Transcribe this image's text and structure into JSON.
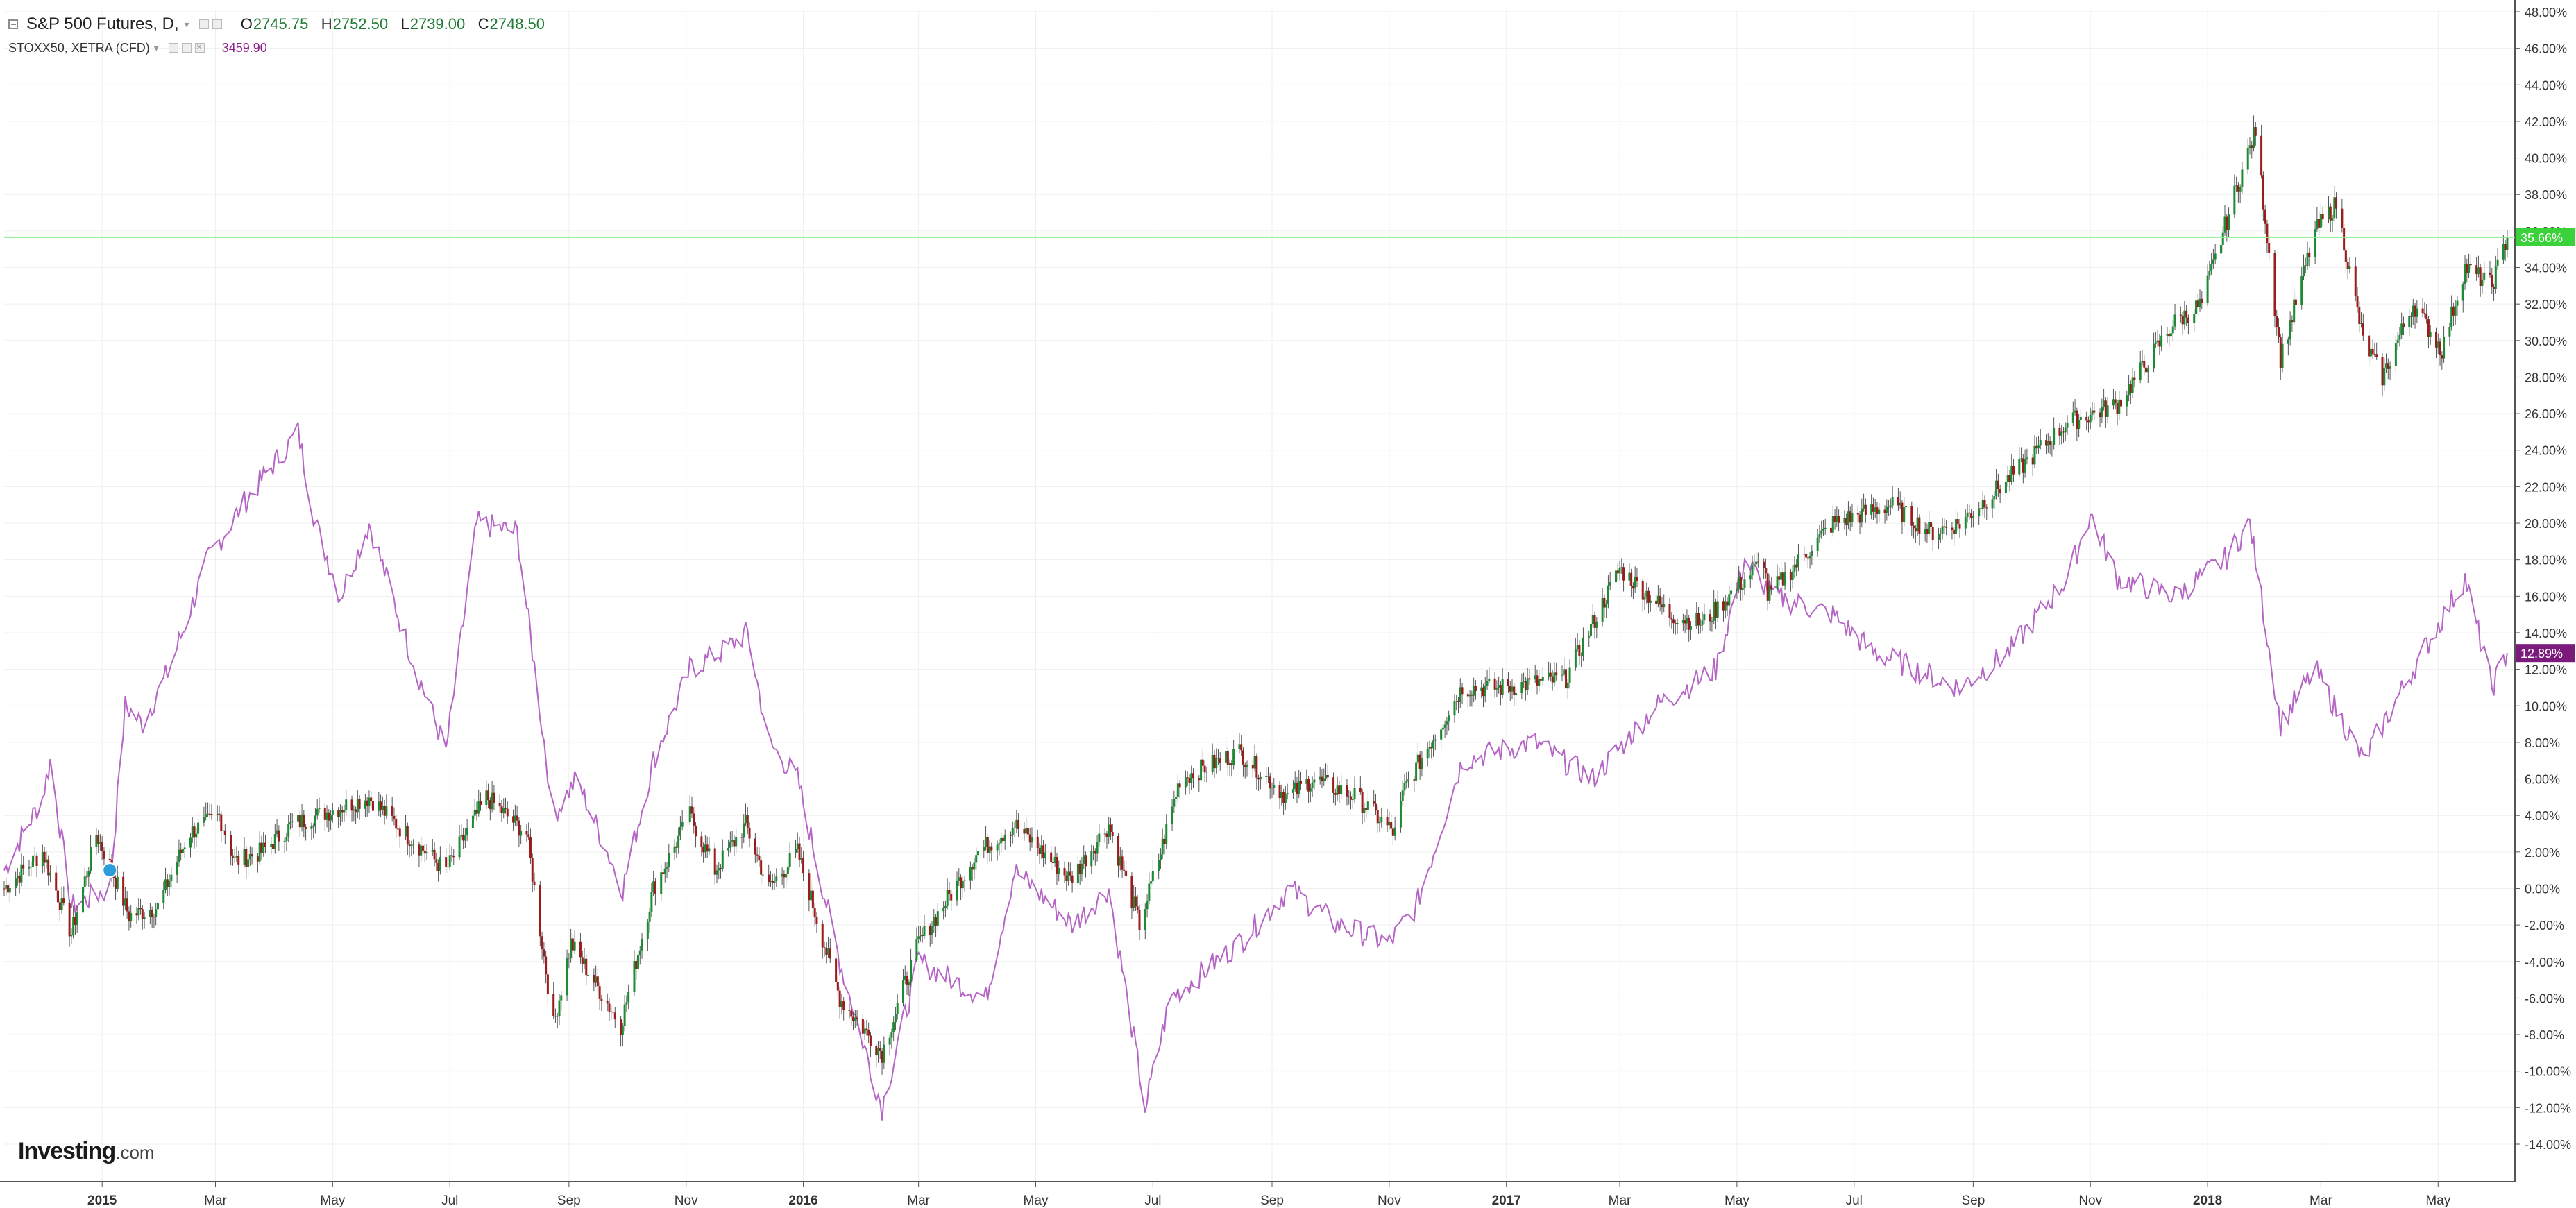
{
  "header": {
    "main_title": "S&P 500 Futures, D,",
    "ohlc": [
      {
        "key": "O",
        "value": "2745.75"
      },
      {
        "key": "H",
        "value": "2752.50"
      },
      {
        "key": "L",
        "value": "2739.00"
      },
      {
        "key": "C",
        "value": "2748.50"
      }
    ],
    "compare_title": "STOXX50, XETRA (CFD)",
    "compare_value": "3459.90"
  },
  "watermark": {
    "brand": "Investing",
    "suffix": ".com"
  },
  "colors": {
    "up": "#1f8a34",
    "down": "#9b1c1c",
    "wick": "#555555",
    "compare_line": "#b565c5",
    "price_line": "#8ef08e",
    "last_label_main": "#3bd13b",
    "last_label_compare": "#7a1a7a",
    "grid": "#efefef",
    "axis": "#555555"
  },
  "chart_data": {
    "type": "line",
    "y_axis": {
      "min": -14,
      "max": 48,
      "step": 2,
      "unit": "%",
      "tick_labels": [
        "-14.00%",
        "-12.00%",
        "-10.00%",
        "-8.00%",
        "-6.00%",
        "-4.00%",
        "-2.00%",
        "0.00%",
        "2.00%",
        "4.00%",
        "6.00%",
        "8.00%",
        "10.00%",
        "12.00%",
        "14.00%",
        "16.00%",
        "18.00%",
        "20.00%",
        "22.00%",
        "24.00%",
        "26.00%",
        "28.00%",
        "30.00%",
        "32.00%",
        "34.00%",
        "36.00%",
        "38.00%",
        "40.00%",
        "42.00%",
        "44.00%",
        "46.00%",
        "48.00%"
      ]
    },
    "x_axis": {
      "start": "2014-11-11",
      "end": "2018-06-10",
      "ticks": [
        {
          "date": "2015-01-01",
          "label": "2015",
          "bold": true
        },
        {
          "date": "2015-03-01",
          "label": "Mar"
        },
        {
          "date": "2015-05-01",
          "label": "May"
        },
        {
          "date": "2015-07-01",
          "label": "Jul"
        },
        {
          "date": "2015-09-01",
          "label": "Sep"
        },
        {
          "date": "2015-11-01",
          "label": "Nov"
        },
        {
          "date": "2016-01-01",
          "label": "2016",
          "bold": true
        },
        {
          "date": "2016-03-01",
          "label": "Mar"
        },
        {
          "date": "2016-05-01",
          "label": "May"
        },
        {
          "date": "2016-07-01",
          "label": "Jul"
        },
        {
          "date": "2016-09-01",
          "label": "Sep"
        },
        {
          "date": "2016-11-01",
          "label": "Nov"
        },
        {
          "date": "2017-01-01",
          "label": "2017",
          "bold": true
        },
        {
          "date": "2017-03-01",
          "label": "Mar"
        },
        {
          "date": "2017-05-01",
          "label": "May"
        },
        {
          "date": "2017-07-01",
          "label": "Jul"
        },
        {
          "date": "2017-09-01",
          "label": "Sep"
        },
        {
          "date": "2017-11-01",
          "label": "Nov"
        },
        {
          "date": "2018-01-01",
          "label": "2018",
          "bold": true
        },
        {
          "date": "2018-03-01",
          "label": "Mar"
        },
        {
          "date": "2018-05-01",
          "label": "May"
        }
      ]
    },
    "series": [
      {
        "name": "S&P 500 Futures",
        "style": "candlestick",
        "last_value_label": "35.66%",
        "last_value": 35.66,
        "points": [
          {
            "date": "2014-11-11",
            "y": 0
          },
          {
            "date": "2014-12-01",
            "y": 2
          },
          {
            "date": "2014-12-16",
            "y": -2.5
          },
          {
            "date": "2014-12-29",
            "y": 3
          },
          {
            "date": "2015-01-06",
            "y": 1
          },
          {
            "date": "2015-01-15",
            "y": -1.5
          },
          {
            "date": "2015-01-30",
            "y": -1
          },
          {
            "date": "2015-02-15",
            "y": 3
          },
          {
            "date": "2015-03-03",
            "y": 4
          },
          {
            "date": "2015-03-11",
            "y": 1.5
          },
          {
            "date": "2015-03-25",
            "y": 2
          },
          {
            "date": "2015-04-10",
            "y": 3.5
          },
          {
            "date": "2015-05-20",
            "y": 5
          },
          {
            "date": "2015-06-08",
            "y": 3
          },
          {
            "date": "2015-06-29",
            "y": 1
          },
          {
            "date": "2015-07-20",
            "y": 5
          },
          {
            "date": "2015-08-10",
            "y": 3
          },
          {
            "date": "2015-08-24",
            "y": -7.5
          },
          {
            "date": "2015-09-02",
            "y": -3
          },
          {
            "date": "2015-09-28",
            "y": -7.5
          },
          {
            "date": "2015-10-15",
            "y": 0
          },
          {
            "date": "2015-11-03",
            "y": 4
          },
          {
            "date": "2015-11-16",
            "y": 1
          },
          {
            "date": "2015-12-02",
            "y": 3.5
          },
          {
            "date": "2015-12-14",
            "y": 0
          },
          {
            "date": "2015-12-29",
            "y": 2
          },
          {
            "date": "2016-01-20",
            "y": -6
          },
          {
            "date": "2016-02-11",
            "y": -9
          },
          {
            "date": "2016-03-01",
            "y": -3
          },
          {
            "date": "2016-04-01",
            "y": 2
          },
          {
            "date": "2016-04-20",
            "y": 3.5
          },
          {
            "date": "2016-05-19",
            "y": 0.5
          },
          {
            "date": "2016-06-08",
            "y": 3.5
          },
          {
            "date": "2016-06-24",
            "y": -2
          },
          {
            "date": "2016-07-05",
            "y": 2
          },
          {
            "date": "2016-07-15",
            "y": 6
          },
          {
            "date": "2016-08-15",
            "y": 7.5
          },
          {
            "date": "2016-09-09",
            "y": 5
          },
          {
            "date": "2016-09-22",
            "y": 6
          },
          {
            "date": "2016-10-15",
            "y": 5
          },
          {
            "date": "2016-11-04",
            "y": 3
          },
          {
            "date": "2016-11-09",
            "y": 5.5
          },
          {
            "date": "2016-12-09",
            "y": 11
          },
          {
            "date": "2016-12-30",
            "y": 11
          },
          {
            "date": "2017-02-01",
            "y": 11.5
          },
          {
            "date": "2017-03-01",
            "y": 17.5
          },
          {
            "date": "2017-03-27",
            "y": 15
          },
          {
            "date": "2017-04-13",
            "y": 14.5
          },
          {
            "date": "2017-05-15",
            "y": 18
          },
          {
            "date": "2017-05-17",
            "y": 16
          },
          {
            "date": "2017-06-20",
            "y": 20
          },
          {
            "date": "2017-07-20",
            "y": 21
          },
          {
            "date": "2017-08-10",
            "y": 19.5
          },
          {
            "date": "2017-08-25",
            "y": 20
          },
          {
            "date": "2017-09-20",
            "y": 22.5
          },
          {
            "date": "2017-10-20",
            "y": 25.5
          },
          {
            "date": "2017-11-15",
            "y": 26.5
          },
          {
            "date": "2017-12-15",
            "y": 31
          },
          {
            "date": "2017-12-29",
            "y": 32
          },
          {
            "date": "2018-01-15",
            "y": 38
          },
          {
            "date": "2018-01-26",
            "y": 41.5
          },
          {
            "date": "2018-02-08",
            "y": 29
          },
          {
            "date": "2018-02-26",
            "y": 36
          },
          {
            "date": "2018-03-09",
            "y": 37.5
          },
          {
            "date": "2018-03-23",
            "y": 30
          },
          {
            "date": "2018-04-02",
            "y": 28
          },
          {
            "date": "2018-04-18",
            "y": 32
          },
          {
            "date": "2018-05-03",
            "y": 29.5
          },
          {
            "date": "2018-05-15",
            "y": 34
          },
          {
            "date": "2018-05-29",
            "y": 33
          },
          {
            "date": "2018-06-06",
            "y": 35.66
          }
        ]
      },
      {
        "name": "STOXX50, XETRA (CFD)",
        "style": "line",
        "last_value_label": "12.89%",
        "last_value": 12.89,
        "points": [
          {
            "date": "2014-11-11",
            "y": 1
          },
          {
            "date": "2014-12-01",
            "y": 5
          },
          {
            "date": "2014-12-05",
            "y": 7
          },
          {
            "date": "2014-12-16",
            "y": -1
          },
          {
            "date": "2015-01-05",
            "y": 0
          },
          {
            "date": "2015-01-13",
            "y": 10
          },
          {
            "date": "2015-01-22",
            "y": 9
          },
          {
            "date": "2015-02-05",
            "y": 12
          },
          {
            "date": "2015-02-25",
            "y": 18
          },
          {
            "date": "2015-03-15",
            "y": 21
          },
          {
            "date": "2015-04-13",
            "y": 25
          },
          {
            "date": "2015-04-22",
            "y": 20
          },
          {
            "date": "2015-05-05",
            "y": 16
          },
          {
            "date": "2015-05-20",
            "y": 20
          },
          {
            "date": "2015-06-10",
            "y": 13
          },
          {
            "date": "2015-06-29",
            "y": 7.5
          },
          {
            "date": "2015-07-15",
            "y": 20
          },
          {
            "date": "2015-08-05",
            "y": 19.5
          },
          {
            "date": "2015-08-24",
            "y": 4
          },
          {
            "date": "2015-09-05",
            "y": 6
          },
          {
            "date": "2015-09-29",
            "y": 0
          },
          {
            "date": "2015-10-15",
            "y": 7
          },
          {
            "date": "2015-11-03",
            "y": 12
          },
          {
            "date": "2015-11-20",
            "y": 13
          },
          {
            "date": "2015-12-03",
            "y": 14
          },
          {
            "date": "2015-12-14",
            "y": 8
          },
          {
            "date": "2015-12-29",
            "y": 6
          },
          {
            "date": "2016-01-20",
            "y": -4
          },
          {
            "date": "2016-02-11",
            "y": -12
          },
          {
            "date": "2016-03-01",
            "y": -4
          },
          {
            "date": "2016-04-05",
            "y": -6
          },
          {
            "date": "2016-04-20",
            "y": 1
          },
          {
            "date": "2016-05-20",
            "y": -2
          },
          {
            "date": "2016-06-08",
            "y": 0
          },
          {
            "date": "2016-06-27",
            "y": -12
          },
          {
            "date": "2016-07-10",
            "y": -6
          },
          {
            "date": "2016-08-15",
            "y": -3
          },
          {
            "date": "2016-09-10",
            "y": 0
          },
          {
            "date": "2016-10-05",
            "y": -2
          },
          {
            "date": "2016-11-01",
            "y": -3
          },
          {
            "date": "2016-11-15",
            "y": -1
          },
          {
            "date": "2016-12-09",
            "y": 7
          },
          {
            "date": "2017-01-15",
            "y": 8
          },
          {
            "date": "2017-02-15",
            "y": 6
          },
          {
            "date": "2017-03-20",
            "y": 10
          },
          {
            "date": "2017-04-20",
            "y": 12
          },
          {
            "date": "2017-05-05",
            "y": 18
          },
          {
            "date": "2017-05-20",
            "y": 16
          },
          {
            "date": "2017-06-20",
            "y": 15
          },
          {
            "date": "2017-07-10",
            "y": 13
          },
          {
            "date": "2017-08-25",
            "y": 11
          },
          {
            "date": "2017-09-20",
            "y": 13
          },
          {
            "date": "2017-10-20",
            "y": 17
          },
          {
            "date": "2017-11-01",
            "y": 20.5
          },
          {
            "date": "2017-11-15",
            "y": 17
          },
          {
            "date": "2017-12-15",
            "y": 16
          },
          {
            "date": "2018-01-10",
            "y": 18
          },
          {
            "date": "2018-01-23",
            "y": 20
          },
          {
            "date": "2018-02-08",
            "y": 9
          },
          {
            "date": "2018-02-26",
            "y": 12
          },
          {
            "date": "2018-03-23",
            "y": 7
          },
          {
            "date": "2018-04-18",
            "y": 12
          },
          {
            "date": "2018-05-15",
            "y": 17
          },
          {
            "date": "2018-05-29",
            "y": 11
          },
          {
            "date": "2018-06-06",
            "y": 12.89
          }
        ]
      }
    ]
  }
}
